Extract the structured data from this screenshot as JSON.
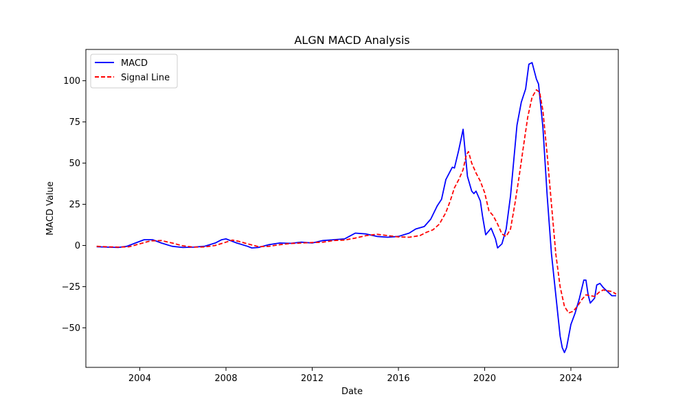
{
  "chart_data": {
    "type": "line",
    "title": "ALGN MACD Analysis",
    "xlabel": "Date",
    "ylabel": "MACD Value",
    "xlim": [
      2001.5,
      2026.2
    ],
    "ylim": [
      -74,
      119
    ],
    "x_ticks": [
      2004,
      2008,
      2012,
      2016,
      2020,
      2024
    ],
    "y_ticks": [
      -50,
      -25,
      0,
      25,
      50,
      75,
      100
    ],
    "grid": false,
    "legend_position": "upper-left",
    "series": [
      {
        "name": "MACD",
        "color": "#0000ff",
        "style": "solid",
        "points": [
          [
            2002.0,
            -0.8
          ],
          [
            2002.5,
            -1.0
          ],
          [
            2003.0,
            -1.2
          ],
          [
            2003.4,
            -0.5
          ],
          [
            2003.8,
            1.5
          ],
          [
            2004.2,
            3.5
          ],
          [
            2004.6,
            3.5
          ],
          [
            2005.0,
            1.5
          ],
          [
            2005.5,
            -0.5
          ],
          [
            2006.0,
            -1.2
          ],
          [
            2006.5,
            -1.0
          ],
          [
            2007.0,
            -0.5
          ],
          [
            2007.5,
            1.5
          ],
          [
            2007.8,
            3.5
          ],
          [
            2008.0,
            4.0
          ],
          [
            2008.5,
            1.5
          ],
          [
            2009.0,
            -0.5
          ],
          [
            2009.2,
            -1.5
          ],
          [
            2009.5,
            -1.2
          ],
          [
            2010.0,
            0.5
          ],
          [
            2010.5,
            1.5
          ],
          [
            2011.0,
            1.3
          ],
          [
            2011.5,
            2.0
          ],
          [
            2012.0,
            1.5
          ],
          [
            2012.5,
            3.0
          ],
          [
            2013.0,
            3.5
          ],
          [
            2013.5,
            4.0
          ],
          [
            2014.0,
            7.5
          ],
          [
            2014.5,
            7.0
          ],
          [
            2015.0,
            5.5
          ],
          [
            2015.5,
            5.0
          ],
          [
            2016.0,
            5.5
          ],
          [
            2016.5,
            7.5
          ],
          [
            2016.8,
            10.0
          ],
          [
            2017.2,
            11.5
          ],
          [
            2017.5,
            16.0
          ],
          [
            2017.8,
            24.0
          ],
          [
            2018.0,
            28.0
          ],
          [
            2018.2,
            40.0
          ],
          [
            2018.5,
            47.5
          ],
          [
            2018.6,
            47.0
          ],
          [
            2018.8,
            58.0
          ],
          [
            2019.0,
            70.5
          ],
          [
            2019.2,
            42.0
          ],
          [
            2019.4,
            33.0
          ],
          [
            2019.5,
            31.5
          ],
          [
            2019.6,
            33.0
          ],
          [
            2019.8,
            27.0
          ],
          [
            2019.9,
            18.0
          ],
          [
            2020.05,
            6.5
          ],
          [
            2020.3,
            10.5
          ],
          [
            2020.5,
            4.0
          ],
          [
            2020.6,
            -1.5
          ],
          [
            2020.8,
            1.0
          ],
          [
            2021.0,
            10.0
          ],
          [
            2021.2,
            30.0
          ],
          [
            2021.5,
            73.0
          ],
          [
            2021.7,
            87.0
          ],
          [
            2021.9,
            95.0
          ],
          [
            2022.05,
            110.0
          ],
          [
            2022.2,
            111.0
          ],
          [
            2022.4,
            101.0
          ],
          [
            2022.5,
            98.0
          ],
          [
            2022.7,
            72.0
          ],
          [
            2022.9,
            30.0
          ],
          [
            2023.1,
            -5.0
          ],
          [
            2023.3,
            -30.0
          ],
          [
            2023.5,
            -55.0
          ],
          [
            2023.6,
            -62.0
          ],
          [
            2023.7,
            -65.0
          ],
          [
            2023.8,
            -62.0
          ],
          [
            2024.0,
            -48.0
          ],
          [
            2024.2,
            -41.0
          ],
          [
            2024.4,
            -32.0
          ],
          [
            2024.6,
            -21.0
          ],
          [
            2024.7,
            -21.0
          ],
          [
            2024.8,
            -30.0
          ],
          [
            2024.9,
            -35.0
          ],
          [
            2025.1,
            -32.0
          ],
          [
            2025.2,
            -24.0
          ],
          [
            2025.35,
            -23.0
          ],
          [
            2025.5,
            -25.5
          ],
          [
            2025.7,
            -28.0
          ],
          [
            2025.9,
            -30.5
          ],
          [
            2026.1,
            -30.5
          ]
        ]
      },
      {
        "name": "Signal Line",
        "color": "#ff0000",
        "style": "dashed",
        "points": [
          [
            2002.0,
            -0.5
          ],
          [
            2002.5,
            -0.8
          ],
          [
            2003.0,
            -1.0
          ],
          [
            2003.5,
            -0.8
          ],
          [
            2004.0,
            1.0
          ],
          [
            2004.5,
            2.8
          ],
          [
            2005.0,
            3.0
          ],
          [
            2005.5,
            1.5
          ],
          [
            2006.0,
            -0.2
          ],
          [
            2006.5,
            -1.0
          ],
          [
            2007.0,
            -0.9
          ],
          [
            2007.5,
            0.0
          ],
          [
            2008.0,
            2.0
          ],
          [
            2008.3,
            3.3
          ],
          [
            2008.6,
            2.5
          ],
          [
            2009.0,
            1.0
          ],
          [
            2009.5,
            -0.7
          ],
          [
            2010.0,
            -0.5
          ],
          [
            2010.5,
            0.5
          ],
          [
            2011.0,
            1.2
          ],
          [
            2011.5,
            1.5
          ],
          [
            2012.0,
            1.8
          ],
          [
            2012.5,
            2.0
          ],
          [
            2013.0,
            3.0
          ],
          [
            2013.5,
            3.3
          ],
          [
            2014.0,
            4.5
          ],
          [
            2014.5,
            6.0
          ],
          [
            2015.0,
            6.8
          ],
          [
            2015.5,
            6.0
          ],
          [
            2016.0,
            5.2
          ],
          [
            2016.5,
            5.0
          ],
          [
            2017.0,
            6.0
          ],
          [
            2017.3,
            8.0
          ],
          [
            2017.6,
            9.5
          ],
          [
            2017.9,
            13.0
          ],
          [
            2018.2,
            20.0
          ],
          [
            2018.4,
            27.0
          ],
          [
            2018.6,
            35.0
          ],
          [
            2018.8,
            40.0
          ],
          [
            2019.0,
            46.0
          ],
          [
            2019.15,
            55.0
          ],
          [
            2019.25,
            57.0
          ],
          [
            2019.4,
            50.0
          ],
          [
            2019.6,
            44.0
          ],
          [
            2019.8,
            39.0
          ],
          [
            2020.0,
            32.0
          ],
          [
            2020.2,
            21.0
          ],
          [
            2020.4,
            18.0
          ],
          [
            2020.6,
            13.0
          ],
          [
            2020.8,
            7.0
          ],
          [
            2021.0,
            5.5
          ],
          [
            2021.2,
            10.0
          ],
          [
            2021.4,
            25.0
          ],
          [
            2021.6,
            42.0
          ],
          [
            2021.8,
            60.0
          ],
          [
            2022.0,
            78.0
          ],
          [
            2022.2,
            90.0
          ],
          [
            2022.4,
            94.5
          ],
          [
            2022.55,
            93.0
          ],
          [
            2022.7,
            82.0
          ],
          [
            2022.9,
            55.0
          ],
          [
            2023.1,
            25.0
          ],
          [
            2023.3,
            -5.0
          ],
          [
            2023.5,
            -25.0
          ],
          [
            2023.7,
            -37.0
          ],
          [
            2023.9,
            -41.0
          ],
          [
            2024.1,
            -40.0
          ],
          [
            2024.3,
            -37.0
          ],
          [
            2024.5,
            -33.0
          ],
          [
            2024.7,
            -30.0
          ],
          [
            2024.9,
            -30.5
          ],
          [
            2025.1,
            -31.0
          ],
          [
            2025.3,
            -28.5
          ],
          [
            2025.5,
            -27.0
          ],
          [
            2025.7,
            -27.5
          ],
          [
            2025.9,
            -28.0
          ],
          [
            2026.1,
            -29.5
          ]
        ]
      }
    ]
  }
}
